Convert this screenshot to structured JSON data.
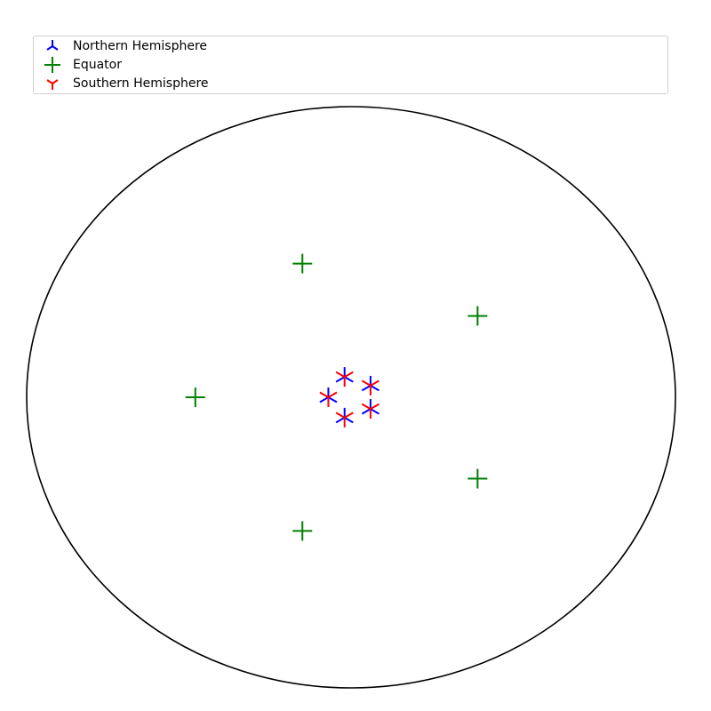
{
  "chart_data": {
    "type": "scatter",
    "projection": "polar/orthographic globe outline (ellipse), no axes, no ticks",
    "grid": false,
    "legend_position": "top",
    "series": [
      {
        "name": "Northern Hemisphere",
        "marker": "tri-down",
        "color": "#0000ff",
        "points": [
          {
            "x": -0.02,
            "y": 0.07
          },
          {
            "x": 0.06,
            "y": 0.04
          },
          {
            "x": 0.06,
            "y": -0.04
          },
          {
            "x": -0.02,
            "y": -0.07
          },
          {
            "x": -0.07,
            "y": 0.0
          }
        ]
      },
      {
        "name": "Equator",
        "marker": "plus",
        "color": "#008000",
        "points": [
          {
            "x": -0.15,
            "y": 0.46
          },
          {
            "x": 0.39,
            "y": 0.28
          },
          {
            "x": -0.48,
            "y": 0.0
          },
          {
            "x": 0.39,
            "y": -0.28
          },
          {
            "x": -0.15,
            "y": -0.46
          }
        ]
      },
      {
        "name": "Southern Hemisphere",
        "marker": "tri-up",
        "color": "#ff0000",
        "points": [
          {
            "x": -0.02,
            "y": 0.07
          },
          {
            "x": 0.06,
            "y": 0.04
          },
          {
            "x": 0.06,
            "y": -0.04
          },
          {
            "x": -0.02,
            "y": -0.07
          },
          {
            "x": -0.07,
            "y": 0.0
          }
        ]
      }
    ]
  }
}
